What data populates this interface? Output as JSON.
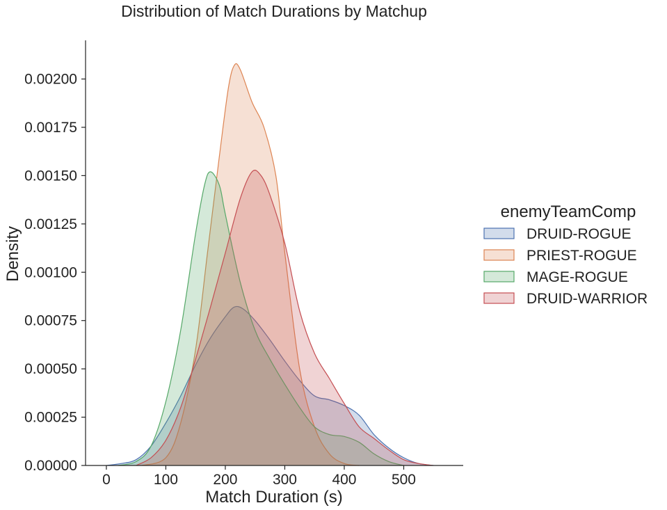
{
  "chart_data": {
    "type": "area",
    "title": "Distribution of Match Durations by Matchup",
    "xlabel": "Match Duration (s)",
    "ylabel": "Density",
    "xlim": [
      -35,
      600
    ],
    "ylim": [
      0,
      0.0022
    ],
    "x_ticks": [
      0,
      100,
      200,
      300,
      400,
      500
    ],
    "x_tick_labels": [
      "0",
      "100",
      "200",
      "300",
      "400",
      "500"
    ],
    "y_ticks": [
      0,
      0.00025,
      0.0005,
      0.00075,
      0.001,
      0.00125,
      0.0015,
      0.00175,
      0.002
    ],
    "y_tick_labels": [
      "0.00000",
      "0.00025",
      "0.00050",
      "0.00075",
      "0.00100",
      "0.00125",
      "0.00150",
      "0.00175",
      "0.00200"
    ],
    "grid": false,
    "legend": {
      "title": "enemyTeamComp",
      "position": "right"
    },
    "series": [
      {
        "name": "DRUID-ROGUE",
        "color": "#4c72b0",
        "points": [
          [
            0,
            0
          ],
          [
            25,
            1e-05
          ],
          [
            50,
            3e-05
          ],
          [
            75,
            0.0001
          ],
          [
            100,
            0.00022
          ],
          [
            125,
            0.00036
          ],
          [
            150,
            0.00052
          ],
          [
            175,
            0.00066
          ],
          [
            200,
            0.00077
          ],
          [
            215,
            0.00082
          ],
          [
            230,
            0.00081
          ],
          [
            250,
            0.00075
          ],
          [
            275,
            0.00065
          ],
          [
            300,
            0.00054
          ],
          [
            325,
            0.00044
          ],
          [
            350,
            0.00036
          ],
          [
            375,
            0.00034
          ],
          [
            400,
            0.00031
          ],
          [
            425,
            0.00026
          ],
          [
            450,
            0.00016
          ],
          [
            475,
            9e-05
          ],
          [
            500,
            4e-05
          ],
          [
            525,
            1e-05
          ],
          [
            550,
            0
          ]
        ]
      },
      {
        "name": "PRIEST-ROGUE",
        "color": "#dd8452",
        "points": [
          [
            60,
            0
          ],
          [
            100,
            4e-05
          ],
          [
            125,
            0.00022
          ],
          [
            150,
            0.0006
          ],
          [
            170,
            0.0011
          ],
          [
            190,
            0.0016
          ],
          [
            205,
            0.00195
          ],
          [
            215,
            0.00207
          ],
          [
            225,
            0.00205
          ],
          [
            245,
            0.00188
          ],
          [
            265,
            0.00175
          ],
          [
            285,
            0.0015
          ],
          [
            300,
            0.0011
          ],
          [
            325,
            0.0005
          ],
          [
            350,
            0.0002
          ],
          [
            375,
            6e-05
          ],
          [
            400,
            1e-05
          ],
          [
            425,
            0
          ]
        ]
      },
      {
        "name": "MAGE-ROGUE",
        "color": "#55a868",
        "points": [
          [
            20,
            0
          ],
          [
            50,
            2e-05
          ],
          [
            75,
            0.0001
          ],
          [
            100,
            0.00033
          ],
          [
            125,
            0.0007
          ],
          [
            150,
            0.0012
          ],
          [
            165,
            0.00145
          ],
          [
            175,
            0.00152
          ],
          [
            190,
            0.00145
          ],
          [
            200,
            0.0013
          ],
          [
            225,
            0.00095
          ],
          [
            250,
            0.0007
          ],
          [
            275,
            0.00055
          ],
          [
            300,
            0.00042
          ],
          [
            325,
            0.0003
          ],
          [
            350,
            0.0002
          ],
          [
            375,
            0.00016
          ],
          [
            400,
            0.00015
          ],
          [
            425,
            0.00012
          ],
          [
            450,
            6e-05
          ],
          [
            475,
            2e-05
          ],
          [
            500,
            0
          ]
        ]
      },
      {
        "name": "DRUID-WARRIOR",
        "color": "#c44e52",
        "points": [
          [
            50,
            0
          ],
          [
            75,
            4e-05
          ],
          [
            100,
            0.00013
          ],
          [
            125,
            0.0003
          ],
          [
            150,
            0.00055
          ],
          [
            175,
            0.00082
          ],
          [
            200,
            0.0011
          ],
          [
            225,
            0.00138
          ],
          [
            245,
            0.00152
          ],
          [
            260,
            0.0015
          ],
          [
            275,
            0.0014
          ],
          [
            300,
            0.00115
          ],
          [
            325,
            0.0008
          ],
          [
            350,
            0.00058
          ],
          [
            375,
            0.00045
          ],
          [
            400,
            0.00032
          ],
          [
            425,
            0.0002
          ],
          [
            450,
            0.00014
          ],
          [
            475,
            8e-05
          ],
          [
            500,
            3e-05
          ],
          [
            525,
            1e-05
          ],
          [
            550,
            0
          ]
        ]
      }
    ]
  }
}
